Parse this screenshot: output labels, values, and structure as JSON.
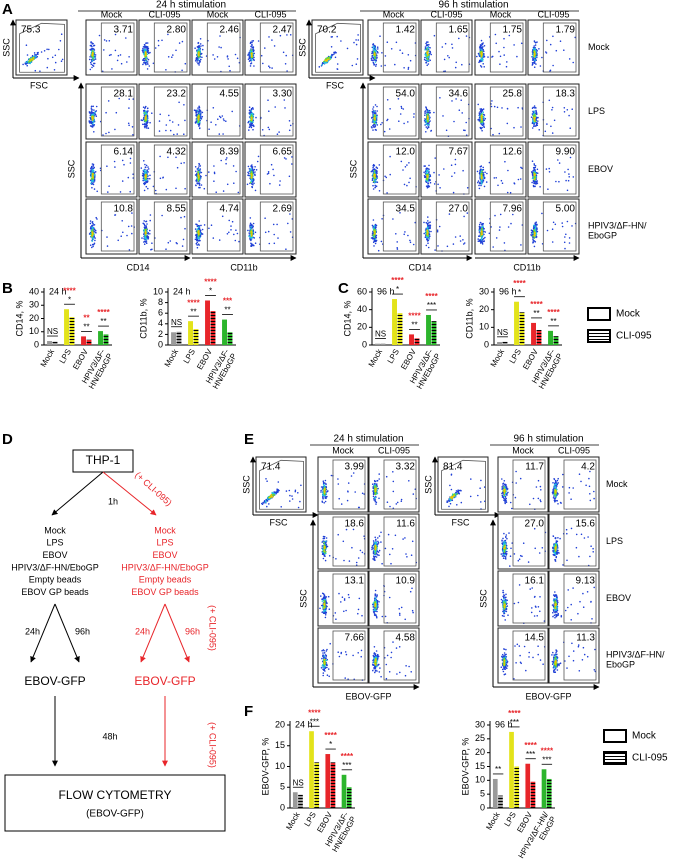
{
  "figure": {
    "panel_a": {
      "label": "A",
      "groups": [
        {
          "title": "24 h stimulation",
          "headers": [
            "Mock",
            "CLI-095",
            "Mock",
            "CLI-095"
          ],
          "gate": {
            "value": "75.3",
            "x_label": "FSC",
            "y_label": "SSC"
          },
          "rows": [
            [
              "3.71",
              "2.80",
              "2.46",
              "2.47"
            ],
            [
              "28.1",
              "23.2",
              "4.55",
              "3.30"
            ],
            [
              "6.14",
              "4.32",
              "8.39",
              "6.65"
            ],
            [
              "10.8",
              "8.55",
              "4.74",
              "2.69"
            ]
          ],
          "y_label": "SSC",
          "x_labels": [
            "CD14",
            "CD11b"
          ]
        },
        {
          "title": "96 h stimulation",
          "headers": [
            "Mock",
            "CLI-095",
            "Mock",
            "CLI-095"
          ],
          "gate": {
            "value": "70.2",
            "x_label": "FSC",
            "y_label": "SSC"
          },
          "rows": [
            [
              "1.42",
              "1.65",
              "1.75",
              "1.79"
            ],
            [
              "54.0",
              "34.6",
              "25.8",
              "18.3"
            ],
            [
              "12.0",
              "7.67",
              "12.6",
              "9.90"
            ],
            [
              "34.5",
              "27.0",
              "7.96",
              "5.00"
            ]
          ],
          "y_label": "SSC",
          "x_labels": [
            "CD14",
            "CD11b"
          ]
        }
      ],
      "row_labels": [
        "Mock",
        "LPS",
        "EBOV",
        "HPIV3/ΔF-HN/EboGP"
      ]
    },
    "panel_d": {
      "label": "D",
      "start": "THP-1",
      "pretreatment": "(+ CLI-095)",
      "preincubation": "1h",
      "left": {
        "color": "#000000",
        "conditions": [
          "Mock",
          "LPS",
          "EBOV",
          "HPIV3/ΔF-HN/EboGP",
          "Empty beads",
          "EBOV GP beads"
        ],
        "times": [
          "24h",
          "96h"
        ],
        "readout": "EBOV-GFP"
      },
      "right": {
        "color": "#e8252a",
        "conditions": [
          "Mock",
          "LPS",
          "EBOV",
          "HPIV3/ΔF-HN/EboGP",
          "Empty beads",
          "EBOV GP beads"
        ],
        "times": [
          "24h",
          "96h"
        ],
        "readout": "EBOV-GFP"
      },
      "treatment_notes": [
        "(+ CLI-095)",
        "(+ CLI-095)"
      ],
      "incubation": "48h",
      "end": [
        "FLOW CYTOMETRY",
        "(EBOV-GFP)"
      ]
    },
    "panel_e": {
      "label": "E",
      "groups": [
        {
          "title": "24 h stimulation",
          "headers": [
            "Mock",
            "CLI-095"
          ],
          "gate": {
            "value": "71.4",
            "x_label": "FSC",
            "y_label": "SSC"
          },
          "rows": [
            [
              "3.99",
              "3.32"
            ],
            [
              "18.6",
              "11.6"
            ],
            [
              "13.1",
              "10.9"
            ],
            [
              "7.66",
              "4.58"
            ]
          ],
          "y_label": "SSC",
          "x_labels": [
            "EBOV-GFP"
          ]
        },
        {
          "title": "96 h stimulation",
          "headers": [
            "Mock",
            "CLI-095"
          ],
          "gate": {
            "value": "81.4",
            "x_label": "FSC",
            "y_label": "SSC"
          },
          "rows": [
            [
              "11.7",
              "4.2"
            ],
            [
              "27.0",
              "15.6"
            ],
            [
              "16.1",
              "9.13"
            ],
            [
              "14.5",
              "11.3"
            ]
          ],
          "y_label": "SSC",
          "x_labels": [
            "EBOV-GFP"
          ]
        }
      ],
      "row_labels": [
        "Mock",
        "LPS",
        "EBOV",
        "HPIV3/ΔF-HN/EboGP"
      ]
    },
    "legends": [
      {
        "items": [
          "Mock",
          "CLI-095"
        ]
      },
      {
        "items": [
          "Mock",
          "CLI-095"
        ]
      }
    ]
  },
  "chart_data": [
    {
      "type": "bar",
      "panel": "B",
      "subtitle": "24 h",
      "ylabel": "CD14, %",
      "categories": [
        "Mock",
        "LPS",
        "EBOV",
        "HPIV3/ΔF-HN/EboGP"
      ],
      "category_colors": [
        "#9a9a9a",
        "#e3e31a",
        "#e8252a",
        "#2cb52c"
      ],
      "series": [
        {
          "pattern": "solid",
          "values": [
            3,
            27,
            6.5,
            10.5
          ]
        },
        {
          "pattern": "striped",
          "values": [
            2.5,
            21,
            4,
            8
          ]
        }
      ],
      "ylim": [
        0,
        40
      ],
      "yticks": [
        0,
        10,
        20,
        30,
        40
      ],
      "sig_vs_mock": [
        null,
        "****",
        "**",
        "****"
      ],
      "sig_vs_cli": [
        "NS",
        "*",
        "**",
        "**"
      ],
      "sig_vs_mock_color": "#e8252a"
    },
    {
      "type": "bar",
      "subtitle": "24 h",
      "ylabel": "CD11b, %",
      "categories": [
        "Mock",
        "LPS",
        "EBOV",
        "HPIV3/ΔF-HN/EboGP"
      ],
      "category_colors": [
        "#9a9a9a",
        "#e3e31a",
        "#e8252a",
        "#2cb52c"
      ],
      "series": [
        {
          "pattern": "solid",
          "values": [
            2.4,
            4.5,
            8.4,
            4.8
          ]
        },
        {
          "pattern": "striped",
          "values": [
            2.5,
            3,
            6.4,
            2.4
          ]
        }
      ],
      "ylim": [
        0,
        10
      ],
      "yticks": [
        0,
        2,
        4,
        6,
        8,
        10
      ],
      "sig_vs_mock": [
        null,
        "****",
        "****",
        "***"
      ],
      "sig_vs_cli": [
        "NS",
        "**",
        "*",
        "**"
      ],
      "sig_vs_mock_color": "#e8252a"
    },
    {
      "type": "bar",
      "panel": "C",
      "subtitle": "96 h",
      "ylabel": "CD14, %",
      "categories": [
        "Mock",
        "LPS",
        "EBOV",
        "HPIV3/ΔF-HN/EboGP"
      ],
      "category_colors": [
        "#9a9a9a",
        "#e3e31a",
        "#e8252a",
        "#2cb52c"
      ],
      "series": [
        {
          "pattern": "solid",
          "values": [
            1.5,
            52,
            12,
            34
          ]
        },
        {
          "pattern": "striped",
          "values": [
            1.6,
            36,
            7.5,
            27
          ]
        }
      ],
      "ylim": [
        0,
        60
      ],
      "yticks": [
        0,
        20,
        40,
        60
      ],
      "sig_vs_mock": [
        null,
        "****",
        "****",
        "****"
      ],
      "sig_vs_cli": [
        "NS",
        "*",
        "**",
        "***"
      ],
      "sig_vs_mock_color": "#e8252a"
    },
    {
      "type": "bar",
      "subtitle": "96 h",
      "ylabel": "CD11b, %",
      "categories": [
        "Mock",
        "LPS",
        "EBOV",
        "HPIV3/ΔF-HN/EboGP"
      ],
      "category_colors": [
        "#9a9a9a",
        "#e3e31a",
        "#e8252a",
        "#2cb52c"
      ],
      "series": [
        {
          "pattern": "solid",
          "values": [
            1.7,
            24.5,
            12.5,
            8
          ]
        },
        {
          "pattern": "striped",
          "values": [
            1.8,
            18.5,
            8.5,
            5
          ]
        }
      ],
      "ylim": [
        0,
        30
      ],
      "yticks": [
        0,
        10,
        20,
        30
      ],
      "sig_vs_mock": [
        null,
        "****",
        "****",
        "****"
      ],
      "sig_vs_cli": [
        "NS",
        "*",
        "**",
        "**"
      ],
      "sig_vs_mock_color": "#e8252a"
    },
    {
      "type": "bar",
      "panel": "F",
      "subtitle": "24 h",
      "ylabel": "EBOV-GFP, %",
      "categories": [
        "Mock",
        "LPS",
        "EBOV",
        "HPIV3/ΔF-HN/EboGP"
      ],
      "category_colors": [
        "#9a9a9a",
        "#e3e31a",
        "#e8252a",
        "#2cb52c"
      ],
      "series": [
        {
          "pattern": "solid",
          "values": [
            3.8,
            18.5,
            13,
            8
          ]
        },
        {
          "pattern": "striped",
          "values": [
            3.2,
            11,
            11,
            5
          ]
        }
      ],
      "ylim": [
        0,
        20
      ],
      "yticks": [
        0,
        5,
        10,
        15,
        20
      ],
      "sig_vs_mock": [
        null,
        "****",
        "****",
        "****"
      ],
      "sig_vs_cli": [
        "NS",
        "***",
        "*",
        "***"
      ],
      "sig_vs_mock_color": "#e8252a"
    },
    {
      "type": "bar",
      "subtitle": "96 h",
      "ylabel": "EBOV-GFP, %",
      "categories": [
        "Mock",
        "LPS",
        "EBOV",
        "HPIV3/ΔF-HN/EboGP"
      ],
      "category_colors": [
        "#9a9a9a",
        "#e3e31a",
        "#e8252a",
        "#2cb52c"
      ],
      "series": [
        {
          "pattern": "solid",
          "values": [
            10.5,
            27.5,
            16,
            14
          ]
        },
        {
          "pattern": "striped",
          "values": [
            4.5,
            15,
            9.5,
            10.5
          ]
        }
      ],
      "ylim": [
        0,
        30
      ],
      "yticks": [
        0,
        5,
        10,
        15,
        20,
        25,
        30
      ],
      "sig_vs_mock": [
        null,
        "****",
        "****",
        "****"
      ],
      "sig_vs_cli": [
        "**",
        "***",
        "***",
        "***"
      ],
      "sig_vs_mock_color": "#e8252a"
    }
  ]
}
